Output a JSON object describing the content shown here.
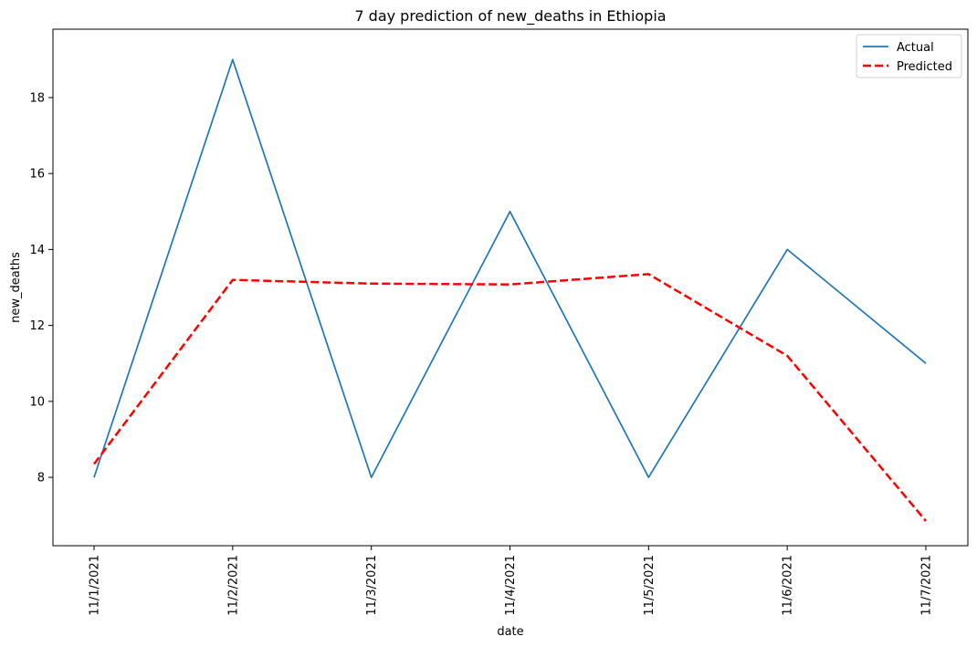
{
  "chart_data": {
    "type": "line",
    "title": "7 day prediction of new_deaths in Ethiopia",
    "xlabel": "date",
    "ylabel": "new_deaths",
    "categories": [
      "11/1/2021",
      "11/2/2021",
      "11/3/2021",
      "11/4/2021",
      "11/5/2021",
      "11/6/2021",
      "11/7/2021"
    ],
    "ylim": [
      6.2,
      19.8
    ],
    "yticks": [
      8,
      10,
      12,
      14,
      16,
      18
    ],
    "grid": false,
    "legend_position": "top-right",
    "series": [
      {
        "name": "Actual",
        "values": [
          8,
          19,
          8,
          15,
          8,
          14,
          11
        ],
        "color": "#1f77b4",
        "style": "solid"
      },
      {
        "name": "Predicted",
        "values": [
          8.35,
          13.2,
          13.1,
          13.08,
          13.35,
          11.2,
          6.85
        ],
        "color": "#ff0000",
        "style": "dashed"
      }
    ]
  }
}
